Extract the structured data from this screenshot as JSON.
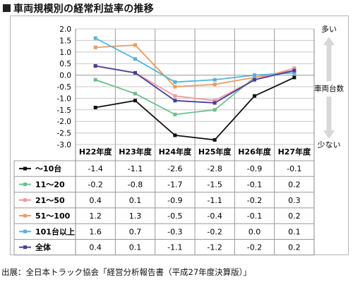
{
  "title": "車両規模別の経常利益率の推移",
  "source": "出展：全日本トラック協会「経営分析報告書（平成27年度決算版）」",
  "right_axis": {
    "label": "車両台数",
    "top": "多い",
    "bottom": "少ない"
  },
  "chart_data": {
    "type": "line",
    "title": "",
    "categories": [
      "H22年度",
      "H23年度",
      "H24年度",
      "H25年度",
      "H26年度",
      "H27年度"
    ],
    "ylim": [
      -3.0,
      2.0
    ],
    "yticks": [
      "2.0",
      "1.5",
      "1.0",
      "0.5",
      "0.0",
      "-0.5",
      "-1.0",
      "-1.5",
      "-2.0",
      "-2.5",
      "-3.0"
    ],
    "grid": true,
    "legend_placement": "table-below",
    "series": [
      {
        "name": "〜10台",
        "color": "#111111",
        "values": [
          -1.4,
          -1.1,
          -2.6,
          -2.8,
          -0.9,
          -0.1
        ]
      },
      {
        "name": "11〜20",
        "color": "#6cbf8c",
        "values": [
          -0.2,
          -0.8,
          -1.7,
          -1.5,
          -0.1,
          0.2
        ]
      },
      {
        "name": "21〜50",
        "color": "#ee9aa6",
        "values": [
          0.4,
          0.1,
          -0.9,
          -1.1,
          -0.2,
          0.3
        ]
      },
      {
        "name": "51〜100",
        "color": "#ef9a5e",
        "values": [
          1.2,
          1.3,
          -0.5,
          -0.4,
          -0.1,
          0.2
        ]
      },
      {
        "name": "101台以上",
        "color": "#4fb4dd",
        "values": [
          1.6,
          0.7,
          -0.3,
          -0.2,
          0.0,
          0.1
        ]
      },
      {
        "name": "全体",
        "color": "#4a3d9a",
        "values": [
          0.4,
          0.1,
          -1.1,
          -1.2,
          -0.2,
          0.2
        ]
      }
    ],
    "table": [
      [
        "-1.4",
        "-1.1",
        "-2.6",
        "-2.8",
        "-0.9",
        "-0.1"
      ],
      [
        "-0.2",
        "-0.8",
        "-1.7",
        "-1.5",
        "-0.1",
        "0.2"
      ],
      [
        "0.4",
        "0.1",
        "-0.9",
        "-1.1",
        "-0.2",
        "0.3"
      ],
      [
        "1.2",
        "1.3",
        "-0.5",
        "-0.4",
        "-0.1",
        "0.2"
      ],
      [
        "1.6",
        "0.7",
        "-0.3",
        "-0.2",
        "0.0",
        "0.1"
      ],
      [
        "0.4",
        "0.1",
        "-1.1",
        "-1.2",
        "-0.2",
        "0.2"
      ]
    ]
  }
}
